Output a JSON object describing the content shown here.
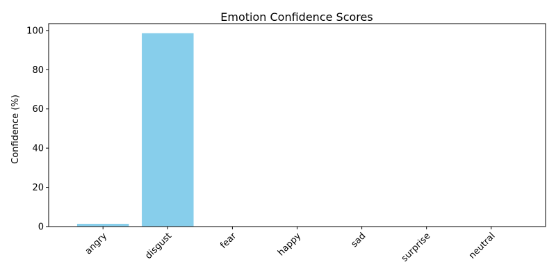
{
  "chart_data": {
    "type": "bar",
    "title": "Emotion Confidence Scores",
    "xlabel": "",
    "ylabel": "Confidence (%)",
    "categories": [
      "angry",
      "disgust",
      "fear",
      "happy",
      "sad",
      "surprise",
      "neutral"
    ],
    "values": [
      1.4,
      98.6,
      0.0,
      0.0,
      0.0,
      0.0,
      0.0
    ],
    "ylim": [
      0,
      103.5
    ],
    "yticks": [
      "0",
      "20",
      "40",
      "60",
      "80",
      "100"
    ],
    "bar_color": "#87ceeb",
    "grid": false,
    "legend": "none"
  }
}
